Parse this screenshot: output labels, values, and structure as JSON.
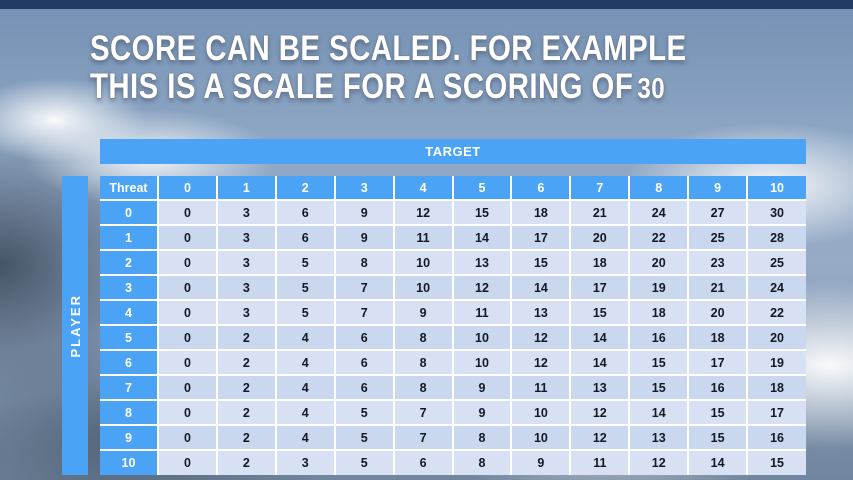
{
  "slide": {
    "title_line1": "SCORE CAN BE SCALED. FOR EXAMPLE",
    "title_line2_text": "THIS IS A SCALE FOR A SCORING OF",
    "title_scale_value": "30"
  },
  "table": {
    "target_label": "TARGET",
    "player_label": "PLAYER",
    "corner_label": "Threat",
    "column_headers": [
      "0",
      "1",
      "2",
      "3",
      "4",
      "5",
      "6",
      "7",
      "8",
      "9",
      "10"
    ],
    "rows": [
      {
        "threat": "0",
        "values": [
          0,
          3,
          6,
          9,
          12,
          15,
          18,
          21,
          24,
          27,
          30
        ]
      },
      {
        "threat": "1",
        "values": [
          0,
          3,
          6,
          9,
          11,
          14,
          17,
          20,
          22,
          25,
          28
        ]
      },
      {
        "threat": "2",
        "values": [
          0,
          3,
          5,
          8,
          10,
          13,
          15,
          18,
          20,
          23,
          25
        ]
      },
      {
        "threat": "3",
        "values": [
          0,
          3,
          5,
          7,
          10,
          12,
          14,
          17,
          19,
          21,
          24
        ]
      },
      {
        "threat": "4",
        "values": [
          0,
          3,
          5,
          7,
          9,
          11,
          13,
          15,
          18,
          20,
          22
        ]
      },
      {
        "threat": "5",
        "values": [
          0,
          2,
          4,
          6,
          8,
          10,
          12,
          14,
          16,
          18,
          20
        ]
      },
      {
        "threat": "6",
        "values": [
          0,
          2,
          4,
          6,
          8,
          10,
          12,
          14,
          15,
          17,
          19
        ]
      },
      {
        "threat": "7",
        "values": [
          0,
          2,
          4,
          6,
          8,
          9,
          11,
          13,
          15,
          16,
          18
        ]
      },
      {
        "threat": "8",
        "values": [
          0,
          2,
          4,
          5,
          7,
          9,
          10,
          12,
          14,
          15,
          17
        ]
      },
      {
        "threat": "9",
        "values": [
          0,
          2,
          4,
          5,
          7,
          8,
          10,
          12,
          13,
          15,
          16
        ]
      },
      {
        "threat": "10",
        "values": [
          0,
          2,
          3,
          5,
          6,
          8,
          9,
          11,
          12,
          14,
          15
        ]
      }
    ]
  },
  "colors": {
    "accent_blue": "#4BA3F5",
    "band_light": "#D8E1F4",
    "band_dark": "#C9D7EF",
    "top_strip_navy": "#203A64",
    "cell_text": "#141824",
    "title_text": "#FFFFFF"
  }
}
